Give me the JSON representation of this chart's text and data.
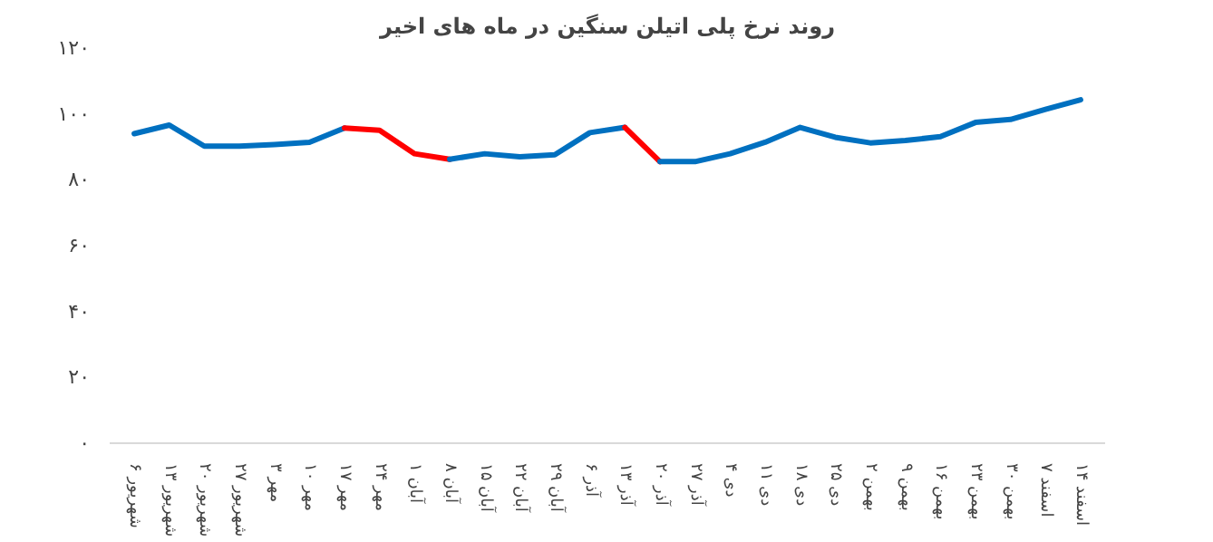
{
  "chart_data": {
    "type": "line",
    "title": "روند نرخ پلی اتیلن سنگین در ماه های اخیر",
    "categories": [
      "۶ شهریور",
      "۱۳ شهریور",
      "۲۰ شهریور",
      "۲۷ شهریور",
      "۳ مهر",
      "۱۰ مهر",
      "۱۷ مهر",
      "۲۴ مهر",
      "۱ آبان",
      "۸ آبان",
      "۱۵ آبان",
      "۲۲ آبان",
      "۲۹ آبان",
      "۶ آذر",
      "۱۳ آذر",
      "۲۰ آذر",
      "۲۷ آذر",
      "۴ دی",
      "۱۱ دی",
      "۱۸ دی",
      "۲۵ دی",
      "۲ بهمن",
      "۹ بهمن",
      "۱۶ بهمن",
      "۲۳ بهمن",
      "۳۰ بهمن",
      "۷ اسفند",
      "۱۴ اسفند"
    ],
    "series": [
      {
        "color": "#0070c0",
        "values": [
          94,
          96.6,
          90.2,
          90.2,
          90.7,
          91.4,
          95.7,
          null,
          null,
          null,
          null,
          null,
          null,
          null,
          null,
          null,
          null,
          null,
          null,
          null,
          null,
          null,
          null,
          null,
          null,
          null,
          null,
          null
        ]
      },
      {
        "color": "#ff0000",
        "values": [
          null,
          null,
          null,
          null,
          null,
          null,
          95.7,
          95,
          87.9,
          86.2,
          null,
          null,
          null,
          null,
          null,
          null,
          null,
          null,
          null,
          null,
          null,
          null,
          null,
          null,
          null,
          null,
          null,
          null
        ]
      },
      {
        "color": "#0070c0",
        "values": [
          null,
          null,
          null,
          null,
          null,
          null,
          null,
          null,
          null,
          86.2,
          87.9,
          87,
          87.6,
          94.3,
          95.9,
          null,
          null,
          null,
          null,
          null,
          null,
          null,
          null,
          null,
          null,
          null,
          null,
          null
        ]
      },
      {
        "color": "#ff0000",
        "values": [
          null,
          null,
          null,
          null,
          null,
          null,
          null,
          null,
          null,
          null,
          null,
          null,
          null,
          null,
          95.9,
          85.5,
          null,
          null,
          null,
          null,
          null,
          null,
          null,
          null,
          null,
          null,
          null,
          null
        ]
      },
      {
        "color": "#0070c0",
        "values": [
          null,
          null,
          null,
          null,
          null,
          null,
          null,
          null,
          null,
          null,
          null,
          null,
          null,
          null,
          null,
          85.5,
          85.5,
          87.9,
          91.4,
          95.9,
          92.9,
          91.2,
          91.9,
          93.1,
          97.4,
          98.3,
          101.4,
          104.3
        ]
      }
    ],
    "ylim": [
      0,
      120
    ],
    "yticks": [
      {
        "value": 0,
        "label": "۰"
      },
      {
        "value": 20,
        "label": "۲۰"
      },
      {
        "value": 40,
        "label": "۴۰"
      },
      {
        "value": 60,
        "label": "۶۰"
      },
      {
        "value": 80,
        "label": "۸۰"
      },
      {
        "value": 100,
        "label": "۱۰۰"
      },
      {
        "value": 120,
        "label": "۱۲۰"
      }
    ],
    "line_style": "solid"
  }
}
